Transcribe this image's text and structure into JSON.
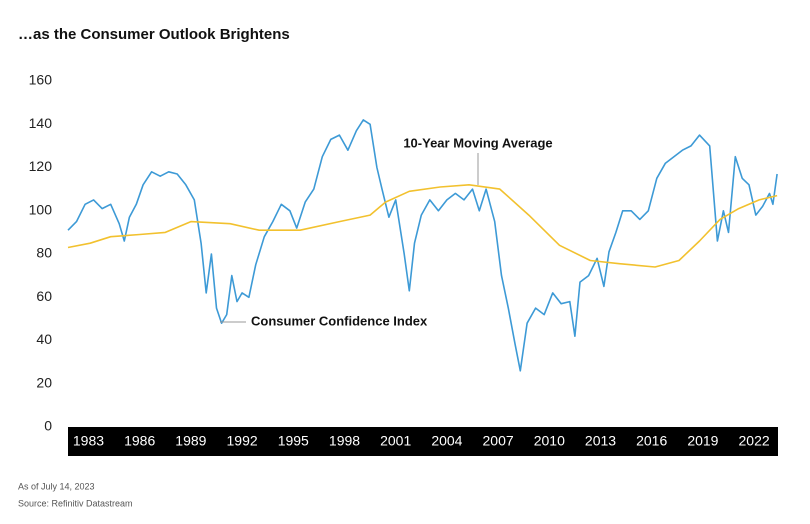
{
  "chart_data": {
    "type": "line",
    "title": "…as the Consumer Outlook Brightens",
    "note": "As of July 14, 2023",
    "source": "Source: Refinitiv Datastream",
    "xlim": [
      1981.8,
      2023.4
    ],
    "xticks": [
      1983,
      1986,
      1989,
      1992,
      1995,
      1998,
      2001,
      2004,
      2007,
      2010,
      2013,
      2016,
      2019,
      2022
    ],
    "ylim": [
      0,
      160
    ],
    "yticks": [
      0,
      20,
      40,
      60,
      80,
      100,
      120,
      140,
      160
    ],
    "grid": false,
    "series": [
      {
        "name": "Consumer Confidence Index",
        "color": "#3d9ad6",
        "x": [
          1981.8,
          1982.3,
          1982.8,
          1983.3,
          1983.8,
          1984.3,
          1984.8,
          1985.1,
          1985.4,
          1985.8,
          1986.2,
          1986.7,
          1987.2,
          1987.7,
          1988.2,
          1988.7,
          1989.2,
          1989.6,
          1989.9,
          1990.2,
          1990.5,
          1990.8,
          1991.1,
          1991.4,
          1991.7,
          1992.0,
          1992.4,
          1992.8,
          1993.3,
          1993.8,
          1994.3,
          1994.8,
          1995.2,
          1995.7,
          1996.2,
          1996.7,
          1997.2,
          1997.7,
          1998.2,
          1998.7,
          1999.1,
          1999.5,
          1999.9,
          2000.2,
          2000.6,
          2001.0,
          2001.5,
          2001.8,
          2002.1,
          2002.5,
          2003.0,
          2003.5,
          2004.0,
          2004.5,
          2005.0,
          2005.5,
          2005.9,
          2006.3,
          2006.8,
          2007.2,
          2007.6,
          2008.0,
          2008.3,
          2008.7,
          2009.2,
          2009.7,
          2010.2,
          2010.7,
          2011.2,
          2011.5,
          2011.8,
          2012.3,
          2012.8,
          2013.2,
          2013.5,
          2013.9,
          2014.3,
          2014.8,
          2015.3,
          2015.8,
          2016.3,
          2016.8,
          2017.3,
          2017.8,
          2018.3,
          2018.8,
          2019.4,
          2019.85,
          2020.2,
          2020.5,
          2020.9,
          2021.3,
          2021.7,
          2022.1,
          2022.5,
          2022.9,
          2023.1,
          2023.35
        ],
        "values": [
          91,
          95,
          103,
          105,
          101,
          103,
          94,
          86,
          97,
          103,
          112,
          118,
          116,
          118,
          117,
          112,
          105,
          85,
          62,
          80,
          55,
          48,
          52,
          70,
          58,
          62,
          60,
          75,
          88,
          95,
          103,
          100,
          92,
          104,
          110,
          125,
          133,
          135,
          128,
          137,
          142,
          140,
          120,
          110,
          97,
          105,
          80,
          63,
          85,
          98,
          105,
          100,
          105,
          108,
          105,
          110,
          100,
          110,
          95,
          70,
          55,
          38,
          26,
          48,
          55,
          52,
          62,
          57,
          58,
          42,
          67,
          70,
          78,
          65,
          81,
          90,
          100,
          100,
          96,
          100,
          115,
          122,
          125,
          128,
          130,
          135,
          130,
          86,
          100,
          90,
          125,
          115,
          112,
          98,
          102,
          108,
          103,
          117
        ]
      },
      {
        "name": "10-Year Moving Average",
        "color": "#f2c12e",
        "x": [
          1981.8,
          1983.1,
          1984.3,
          1986.0,
          1987.5,
          1989.0,
          1991.3,
          1993.0,
          1995.4,
          1997.7,
          1999.5,
          2000.4,
          2001.8,
          2003.6,
          2005.3,
          2007.1,
          2008.8,
          2010.6,
          2012.4,
          2014.1,
          2016.2,
          2017.6,
          2018.8,
          2020.0,
          2021.1,
          2022.3,
          2023.35
        ],
        "values": [
          83,
          85,
          88,
          89,
          90,
          95,
          94,
          91,
          91,
          95,
          98,
          104,
          109,
          111,
          112,
          110,
          98,
          84,
          77,
          75.5,
          74,
          77,
          86,
          96,
          101,
          105,
          107
        ]
      }
    ]
  }
}
